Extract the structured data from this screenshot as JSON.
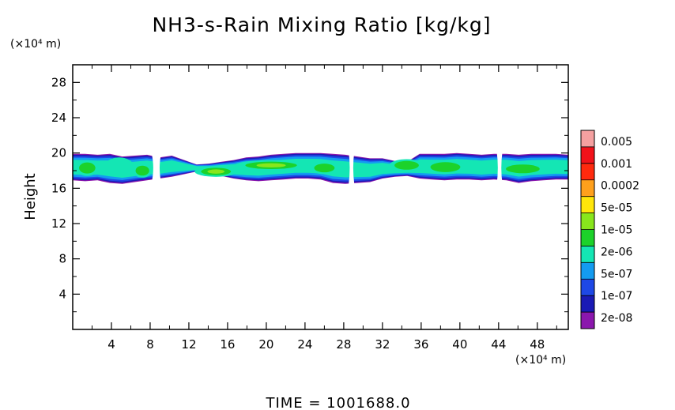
{
  "chart_data": {
    "type": "heatmap",
    "title": "NH3-s-Rain Mixing Ratio [kg/kg]",
    "ylabel": "Height",
    "y_unit_label": "(×10⁴ m)",
    "x_unit_label": "(×10⁴ m)",
    "footer": "TIME  =  1001688.0",
    "xlim": [
      0,
      51.2
    ],
    "ylim": [
      0,
      30
    ],
    "x_ticks": [
      4,
      8,
      12,
      16,
      20,
      24,
      28,
      32,
      36,
      40,
      44,
      48
    ],
    "x_tick_labels": [
      "4",
      "8",
      "12",
      "16",
      "20",
      "24",
      "28",
      "32",
      "36",
      "40",
      "44",
      "48"
    ],
    "y_ticks": [
      4,
      8,
      12,
      16,
      20,
      24,
      28
    ],
    "y_tick_labels": [
      "4",
      "8",
      "12",
      "16",
      "20",
      "24",
      "28"
    ],
    "legend": {
      "placement": "right",
      "colors": [
        "#8b17ad",
        "#1a1ab5",
        "#1e48e6",
        "#139bf0",
        "#14e6b4",
        "#1cd22a",
        "#88e61c",
        "#ffe60a",
        "#ffa01c",
        "#ff2a0e",
        "#f2121a",
        "#f5a0a0"
      ],
      "labels": [
        "2e-08",
        "1e-07",
        "5e-07",
        "2e-06",
        "1e-05",
        "5e-05",
        "0.0002",
        "0.001",
        "0.005"
      ]
    },
    "layer": {
      "x_start": 0,
      "x_end": 51.2,
      "outer_top": [
        19.9,
        19.9,
        19.8,
        19.9,
        19.6,
        19.7,
        19.8,
        19.5,
        19.7,
        19.2,
        18.7,
        18.8,
        19.0,
        19.2,
        19.5,
        19.6,
        19.8,
        19.9,
        20.0,
        20.0,
        20.0,
        19.9,
        19.8,
        19.6,
        19.4,
        19.4,
        19.1,
        19.0,
        19.9,
        19.9,
        19.9,
        20.0,
        19.9,
        19.8,
        19.9,
        19.9,
        19.8,
        19.9,
        19.9,
        19.9,
        19.8
      ],
      "outer_bottom": [
        16.9,
        16.8,
        16.9,
        16.6,
        16.5,
        16.7,
        16.9,
        17.1,
        17.3,
        17.6,
        17.9,
        17.5,
        17.4,
        17.1,
        16.9,
        16.8,
        16.9,
        17.0,
        17.1,
        17.1,
        17.0,
        16.6,
        16.5,
        16.6,
        16.7,
        17.1,
        17.3,
        17.4,
        17.1,
        17.0,
        16.9,
        17.0,
        17.0,
        16.9,
        17.0,
        16.9,
        16.6,
        16.8,
        16.9,
        17.0,
        17.0
      ],
      "gaps": [
        [
          8.1,
          9.2
        ],
        [
          28.5,
          29.1
        ],
        [
          43.8,
          44.4
        ]
      ],
      "cores": [
        {
          "x": 1.5,
          "z": 18.3,
          "rx": 1.2,
          "rz": 0.9,
          "level": 5
        },
        {
          "x": 4.8,
          "z": 18.5,
          "rx": 1.5,
          "rz": 1.0,
          "level": 4
        },
        {
          "x": 7.2,
          "z": 18.0,
          "rx": 1.0,
          "rz": 0.8,
          "level": 5
        },
        {
          "x": 14.8,
          "z": 17.9,
          "rx": 2.2,
          "rz": 0.6,
          "level": 6
        },
        {
          "x": 20.5,
          "z": 18.6,
          "rx": 3.8,
          "rz": 0.6,
          "level": 6
        },
        {
          "x": 26.0,
          "z": 18.3,
          "rx": 1.5,
          "rz": 0.7,
          "level": 5
        },
        {
          "x": 34.5,
          "z": 18.6,
          "rx": 1.8,
          "rz": 0.7,
          "level": 5
        },
        {
          "x": 38.5,
          "z": 18.4,
          "rx": 2.2,
          "rz": 0.8,
          "level": 5
        },
        {
          "x": 41.5,
          "z": 18.5,
          "rx": 1.2,
          "rz": 0.7,
          "level": 4
        },
        {
          "x": 46.5,
          "z": 18.2,
          "rx": 2.5,
          "rz": 0.7,
          "level": 5
        },
        {
          "x": 50.0,
          "z": 18.4,
          "rx": 1.0,
          "rz": 0.6,
          "level": 4
        }
      ]
    }
  }
}
